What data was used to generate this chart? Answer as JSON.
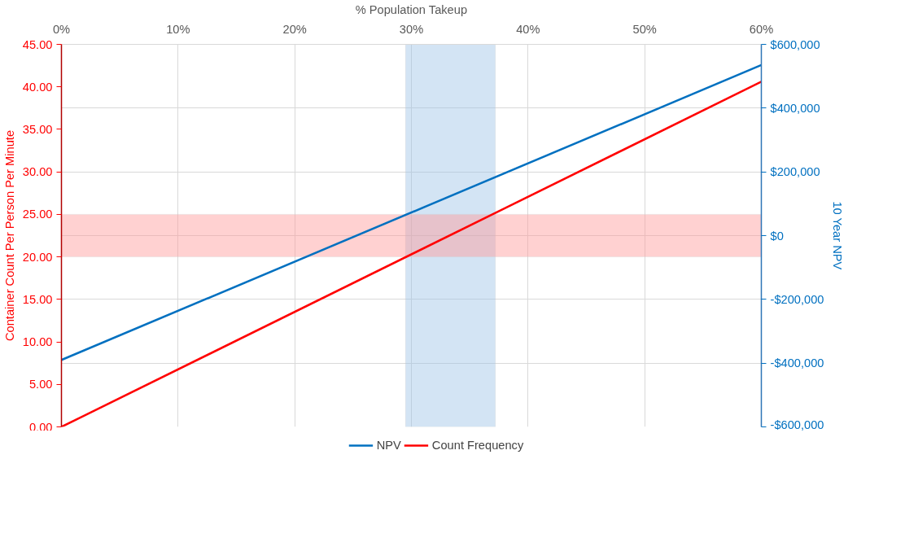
{
  "chart_data": {
    "type": "line",
    "xlabel": "% Population Takeup",
    "ylabel": "Container Count Per Person Per Minute",
    "y2label": "10 Year NPV",
    "x": [
      0,
      60
    ],
    "series": [
      {
        "name": "NPV",
        "color": "#0070c0",
        "values": [
          -390000,
          535000
        ],
        "axis": "y2"
      },
      {
        "name": "Count Frequency",
        "color": "#ff0000",
        "values": [
          0,
          40.6
        ]
      }
    ],
    "xlim": [
      0,
      60
    ],
    "xticks": [
      {
        "value": 0,
        "label": "0%"
      },
      {
        "value": 10,
        "label": "10%"
      },
      {
        "value": 20,
        "label": "20%"
      },
      {
        "value": 30,
        "label": "30%"
      },
      {
        "value": 40,
        "label": "40%"
      },
      {
        "value": 50,
        "label": "50%"
      },
      {
        "value": 60,
        "label": "60%"
      }
    ],
    "ylim": [
      0,
      45
    ],
    "yticks": [
      {
        "value": 0,
        "label": "0.00"
      },
      {
        "value": 5,
        "label": "5.00"
      },
      {
        "value": 10,
        "label": "10.00"
      },
      {
        "value": 15,
        "label": "15.00"
      },
      {
        "value": 20,
        "label": "20.00"
      },
      {
        "value": 25,
        "label": "25.00"
      },
      {
        "value": 30,
        "label": "30.00"
      },
      {
        "value": 35,
        "label": "35.00"
      },
      {
        "value": 40,
        "label": "40.00"
      },
      {
        "value": 45,
        "label": "45.00"
      }
    ],
    "y2lim": [
      -600000,
      600000
    ],
    "y2ticks": [
      {
        "value": -600000,
        "label": "-$600,000"
      },
      {
        "value": -400000,
        "label": "-$400,000"
      },
      {
        "value": -200000,
        "label": "-$200,000"
      },
      {
        "value": 0,
        "label": "$0"
      },
      {
        "value": 200000,
        "label": "$200,000"
      },
      {
        "value": 400000,
        "label": "$400,000"
      },
      {
        "value": 600000,
        "label": "$600,000"
      }
    ],
    "bands": [
      {
        "axis": "x",
        "from": 29.5,
        "to": 37.2,
        "color": "#9dc3e6"
      },
      {
        "axis": "y",
        "from": 20,
        "to": 25,
        "color": "#ff9999"
      }
    ],
    "grid": true,
    "legend": "bottom",
    "marker": "none",
    "line_style": "solid"
  }
}
